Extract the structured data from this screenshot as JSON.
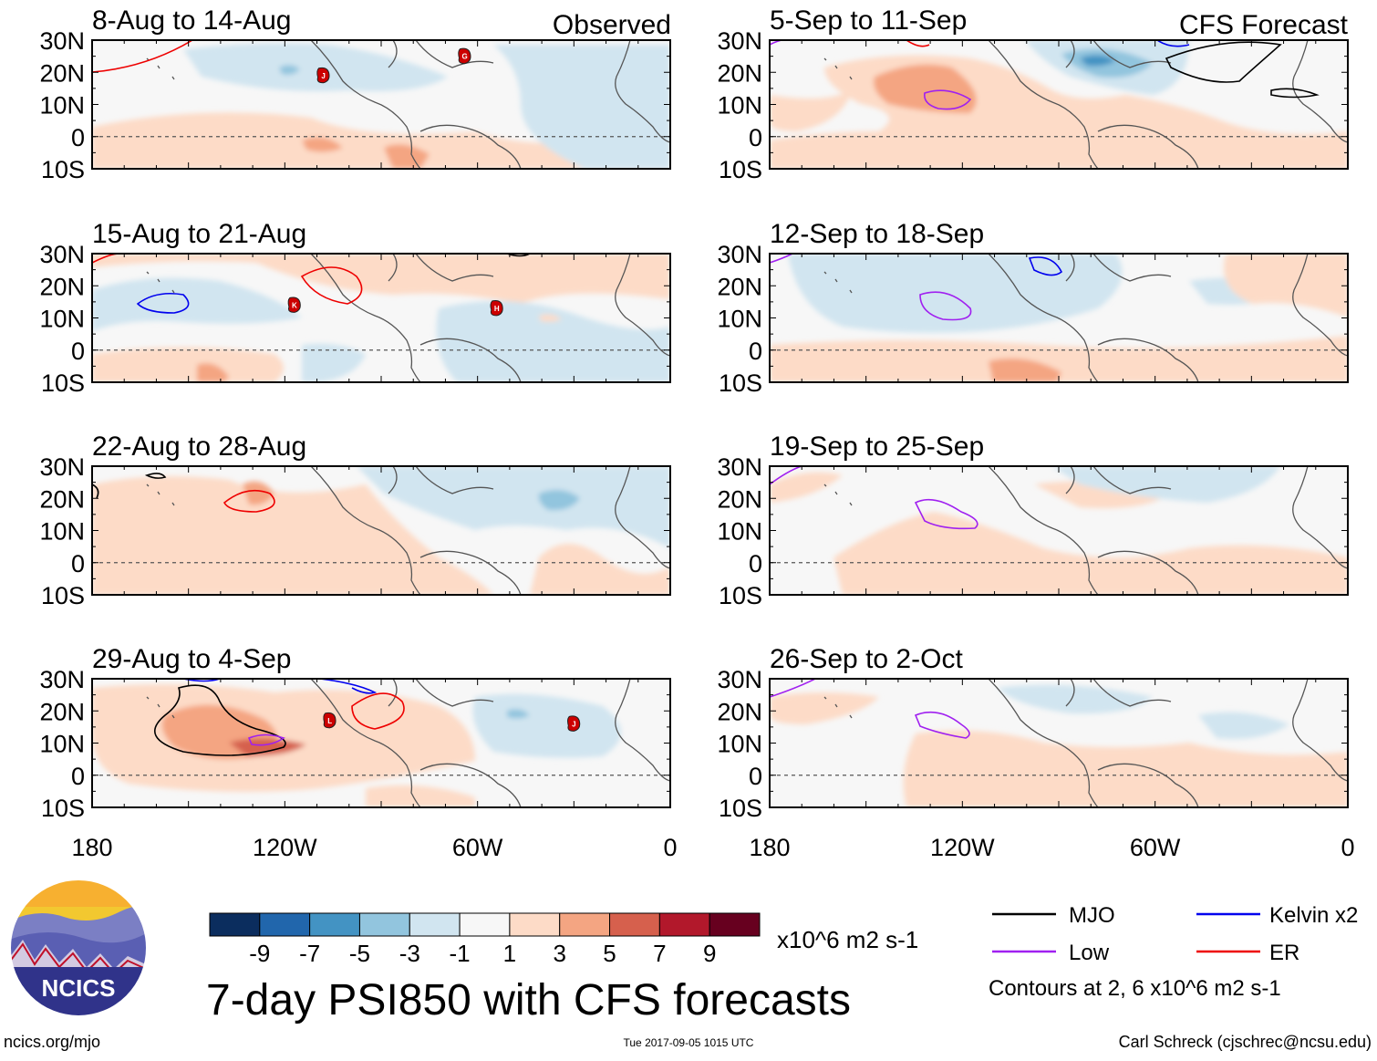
{
  "figure": {
    "title": "7-day PSI850 with CFS forecasts",
    "observed_label": "Observed",
    "forecast_label": "CFS Forecast",
    "footer_left": "ncics.org/mjo",
    "footer_center": "Tue 2017-09-05 1015 UTC",
    "footer_right": "Carl Schreck (cjschrec@ncsu.edu)",
    "logo_text": "NCICS"
  },
  "chart_data": {
    "type": "heatmap",
    "variable": "PSI850 anomaly",
    "units": "x10^6 m2 s-1",
    "lat_ticks": [
      "30N",
      "20N",
      "10N",
      "0",
      "10S"
    ],
    "lon_ticks": [
      "180",
      "120W",
      "60W",
      "0"
    ],
    "lat_range": [
      -10,
      30
    ],
    "lon_range": [
      -180,
      0
    ],
    "colorbar": {
      "levels": [
        "-9",
        "-7",
        "-5",
        "-3",
        "-1",
        "1",
        "3",
        "5",
        "7",
        "9"
      ],
      "colors": [
        "#0b2d5e",
        "#2166ac",
        "#4393c3",
        "#92c5de",
        "#d1e5f0",
        "#f7f7f7",
        "#fddbc7",
        "#f4a582",
        "#d6604d",
        "#b2182b",
        "#67001f"
      ],
      "units_label": "x10^6 m2 s-1"
    },
    "legend": {
      "entries": [
        {
          "name": "MJO",
          "color": "#000000"
        },
        {
          "name": "Kelvin x2",
          "color": "#0000ee"
        },
        {
          "name": "Low",
          "color": "#a020f0"
        },
        {
          "name": "ER",
          "color": "#ee0000"
        }
      ],
      "note": "Contours at 2, 6 x10^6 m2 s-1"
    },
    "panels": [
      {
        "title": "8-Aug to 14-Aug",
        "kind": "observed",
        "storms": [
          {
            "label": "J",
            "lon": -108,
            "lat": 19
          },
          {
            "label": "G",
            "lon": -64,
            "lat": 25
          }
        ]
      },
      {
        "title": "15-Aug to 21-Aug",
        "kind": "observed",
        "storms": [
          {
            "label": "K",
            "lon": -117,
            "lat": 14
          },
          {
            "label": "H",
            "lon": -54,
            "lat": 13
          }
        ]
      },
      {
        "title": "22-Aug to 28-Aug",
        "kind": "observed",
        "storms": []
      },
      {
        "title": "29-Aug to 4-Sep",
        "kind": "observed",
        "storms": [
          {
            "label": "L",
            "lon": -106,
            "lat": 17
          },
          {
            "label": "J",
            "lon": -30,
            "lat": 16
          }
        ]
      },
      {
        "title": "5-Sep to 11-Sep",
        "kind": "forecast",
        "storms": []
      },
      {
        "title": "12-Sep to 18-Sep",
        "kind": "forecast",
        "storms": []
      },
      {
        "title": "19-Sep to 25-Sep",
        "kind": "forecast",
        "storms": []
      },
      {
        "title": "26-Sep to 2-Oct",
        "kind": "forecast",
        "storms": []
      }
    ]
  }
}
